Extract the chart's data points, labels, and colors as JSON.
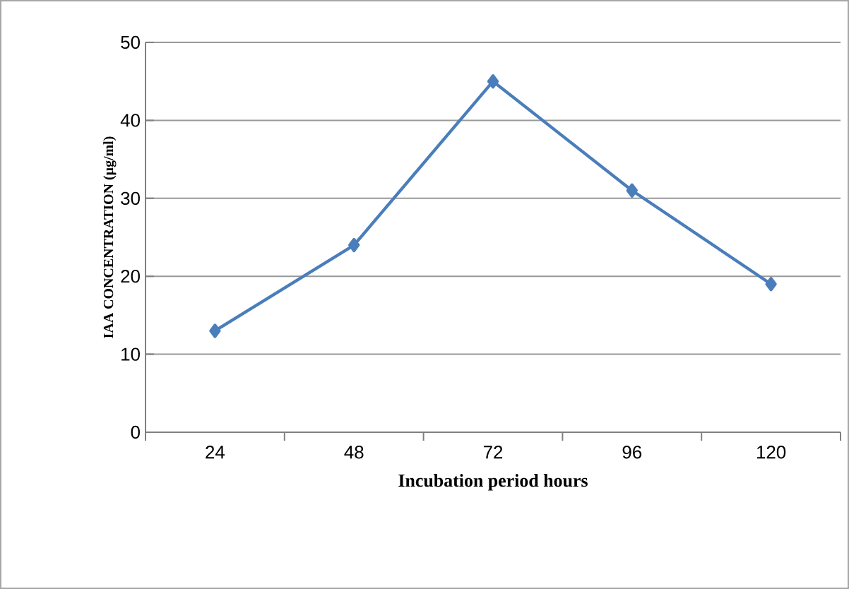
{
  "chart_data": {
    "type": "line",
    "xlabel": "Incubation period hours",
    "ylabel": "IAA CONCENTRATION (µg/ml)",
    "categories": [
      "24",
      "48",
      "72",
      "96",
      "120"
    ],
    "series": [
      {
        "color": "#4a7ebb",
        "values": [
          13,
          24,
          45,
          31,
          19
        ]
      }
    ],
    "ylim": [
      0,
      50
    ],
    "yticks": [
      0,
      10,
      20,
      30,
      40,
      50
    ],
    "grid": "y",
    "marker": "diamond",
    "line_style": "solid"
  }
}
